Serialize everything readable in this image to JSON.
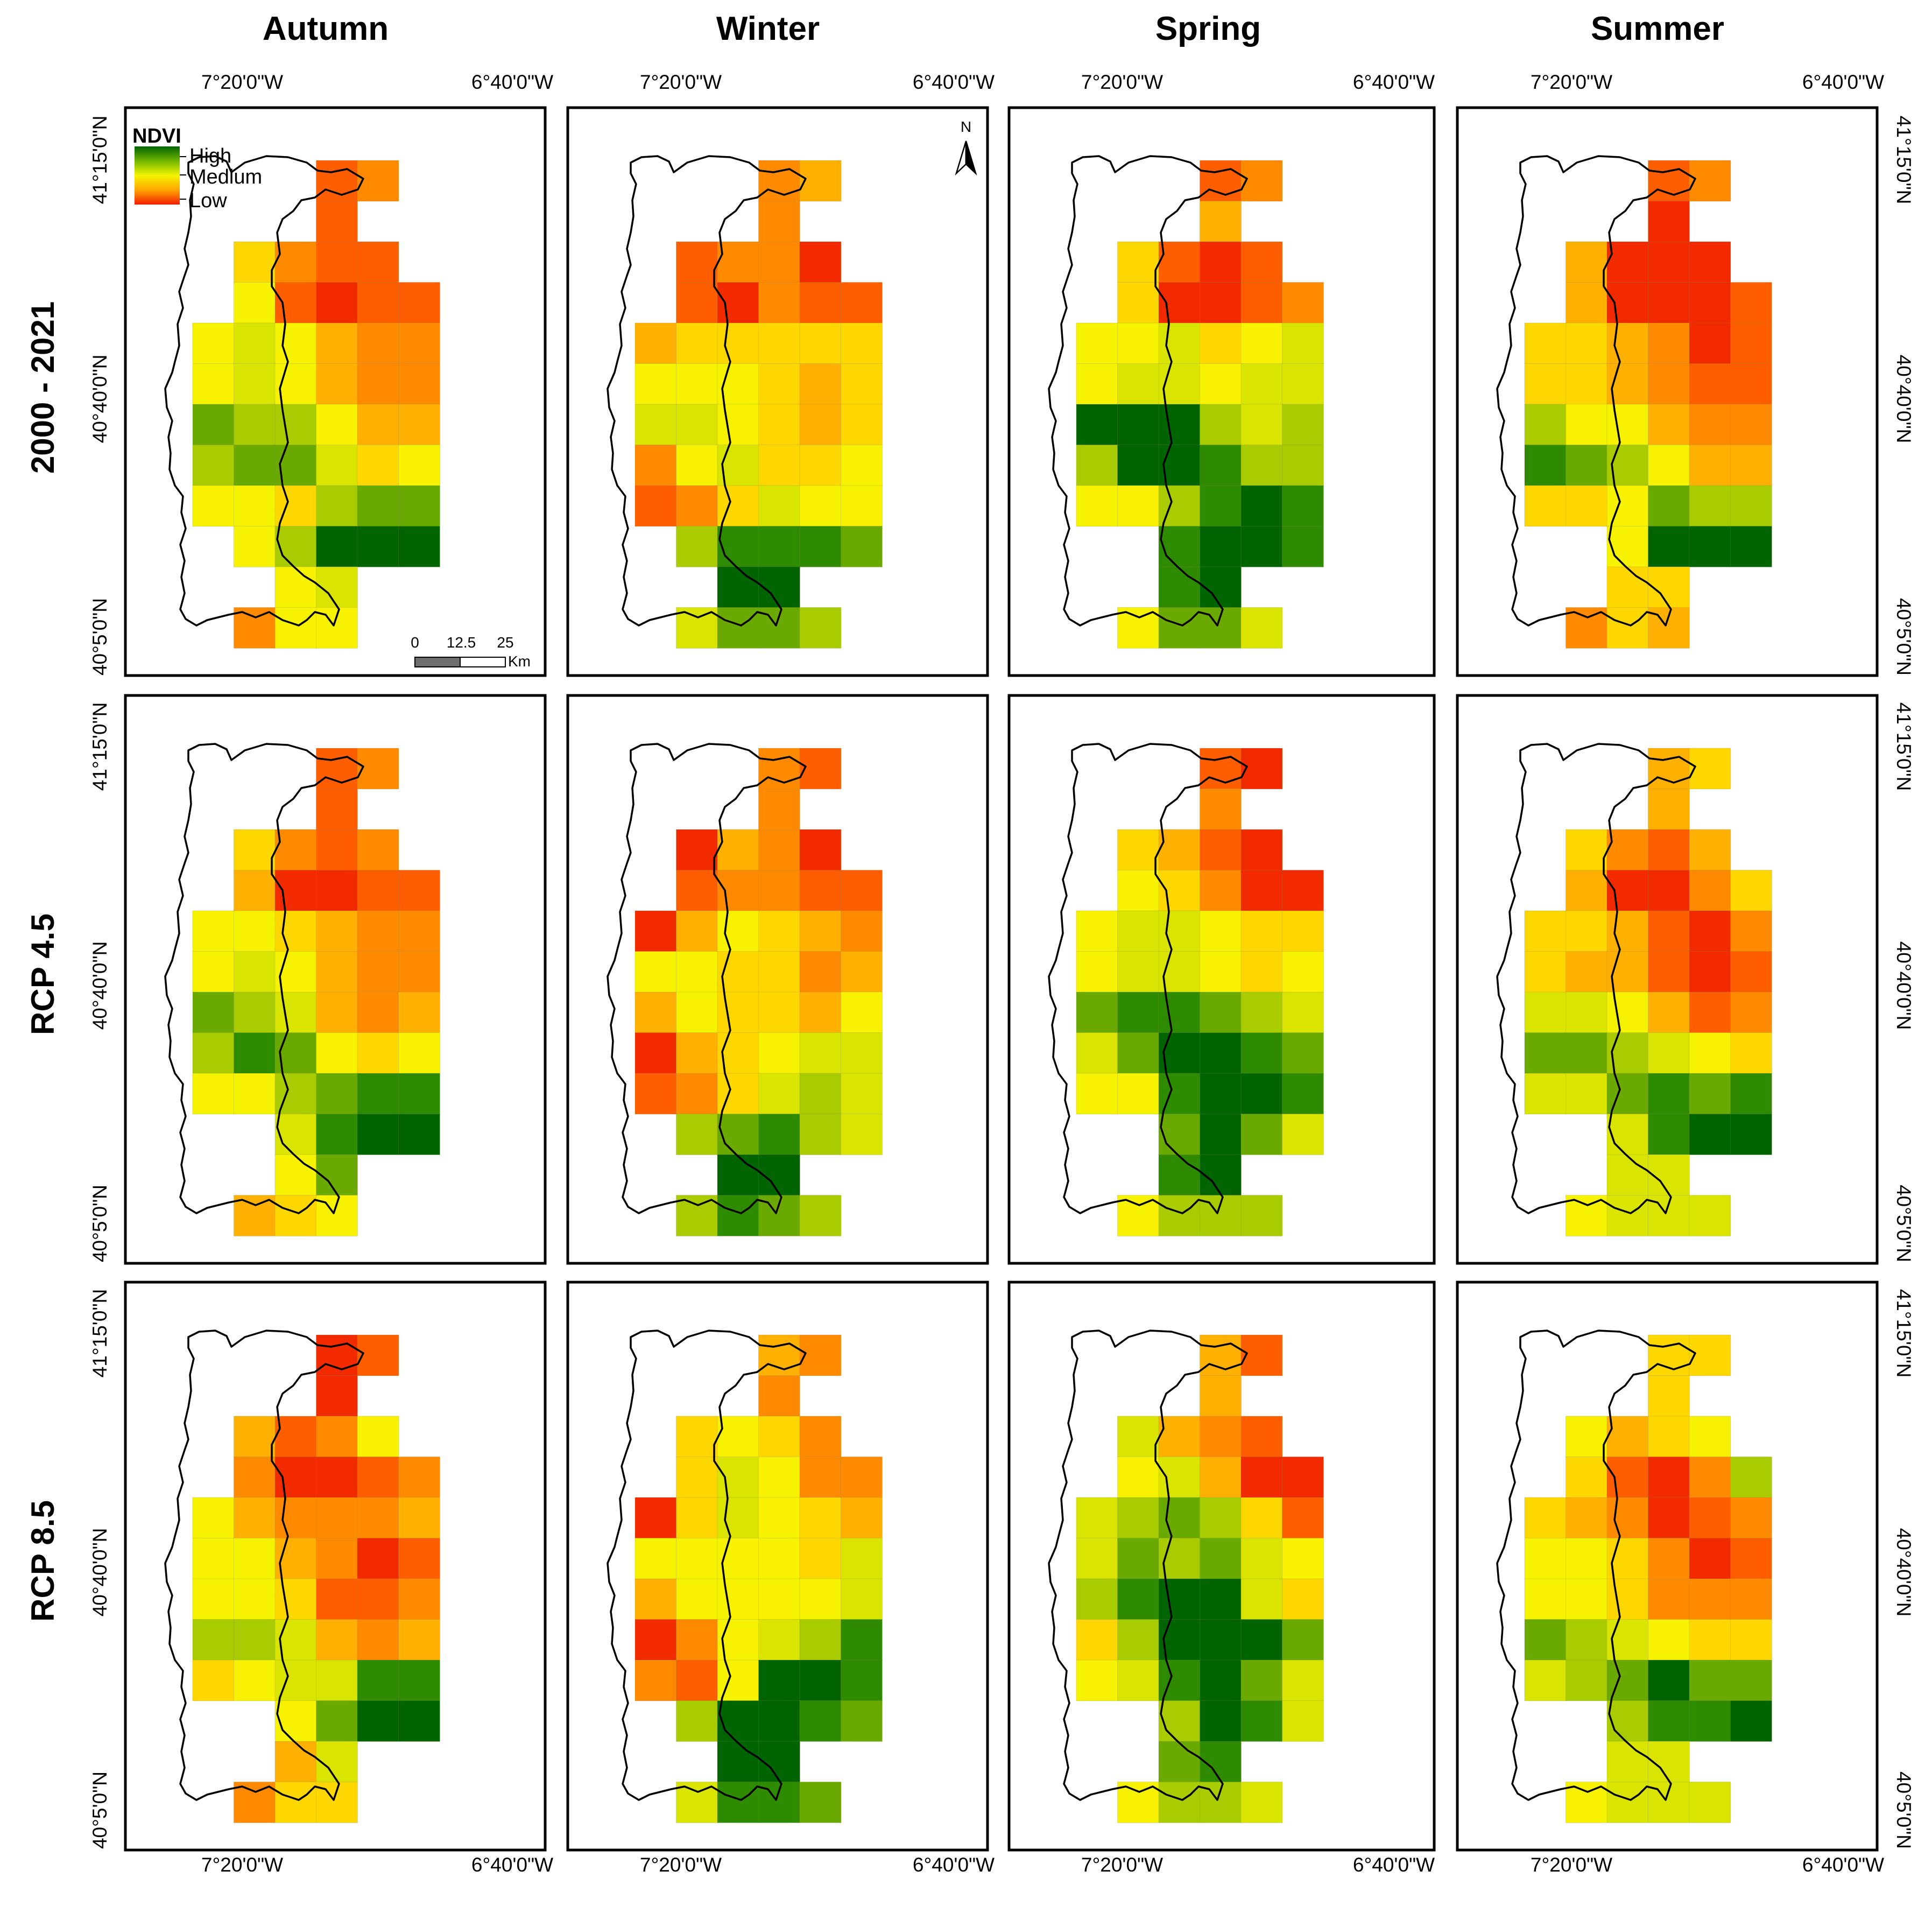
{
  "figure": {
    "seasons": [
      "Autumn",
      "Winter",
      "Spring",
      "Summer"
    ],
    "rows": [
      "2000 - 2021",
      "RCP 4.5",
      "RCP 8.5"
    ],
    "lon_labels": [
      "7°20'0\"W",
      "6°40'0\"W"
    ],
    "lat_labels": [
      "41°15'0\"N",
      "40°40'0\"N",
      "40°5'0\"N"
    ]
  },
  "legend": {
    "title": "NDVI",
    "high": "High",
    "medium": "Medium",
    "low": "Low",
    "colors": [
      "#006400",
      "#2e8b00",
      "#6aaa00",
      "#a9cc00",
      "#d9e500",
      "#f7f300",
      "#ffd700",
      "#ffb000",
      "#ff8a00",
      "#ff5e00",
      "#f22a00"
    ]
  },
  "scalebar": {
    "ticks": [
      "0",
      "12.5",
      "25"
    ],
    "unit": "Km"
  },
  "north_arrow": {
    "label": "N"
  },
  "grid_cols": [
    "C0",
    "C1",
    "C2",
    "C3",
    "C4",
    "C5",
    "C6"
  ],
  "grid_rows": [
    "R0",
    "R1",
    "R2",
    "R3",
    "R4",
    "R5",
    "R6",
    "R7",
    "R8",
    "R9",
    "R10",
    "R11"
  ],
  "ndvi_class_scale": "0 = lowest NDVI (red) ... 10 = highest NDVI (dark green); -1 = no cell",
  "panels": [
    {
      "row": "2000 - 2021",
      "season": "Autumn",
      "grid": [
        [
          -1,
          -1,
          -1,
          1,
          2,
          -1,
          -1
        ],
        [
          -1,
          -1,
          -1,
          1,
          -1,
          -1,
          -1
        ],
        [
          -1,
          4,
          2,
          1,
          1,
          -1,
          -1
        ],
        [
          -1,
          5,
          1,
          0,
          1,
          1,
          -1
        ],
        [
          5,
          6,
          5,
          3,
          2,
          2,
          -1
        ],
        [
          5,
          6,
          5,
          3,
          2,
          2,
          -1
        ],
        [
          8,
          7,
          7,
          5,
          3,
          3,
          -1
        ],
        [
          7,
          8,
          8,
          6,
          4,
          5,
          -1
        ],
        [
          5,
          5,
          4,
          7,
          8,
          8,
          -1
        ],
        [
          -1,
          5,
          7,
          10,
          10,
          10,
          -1
        ],
        [
          -1,
          -1,
          5,
          6,
          -1,
          -1,
          -1
        ],
        [
          -1,
          2,
          5,
          5,
          -1,
          -1,
          -1
        ]
      ]
    },
    {
      "row": "2000 - 2021",
      "season": "Winter",
      "grid": [
        [
          -1,
          -1,
          -1,
          2,
          3,
          -1,
          -1
        ],
        [
          -1,
          -1,
          -1,
          2,
          -1,
          -1,
          -1
        ],
        [
          -1,
          1,
          2,
          2,
          0,
          -1,
          -1
        ],
        [
          -1,
          1,
          0,
          2,
          1,
          1,
          -1
        ],
        [
          3,
          4,
          4,
          4,
          4,
          4,
          -1
        ],
        [
          5,
          5,
          5,
          4,
          3,
          4,
          -1
        ],
        [
          6,
          6,
          5,
          4,
          3,
          4,
          -1
        ],
        [
          2,
          5,
          6,
          4,
          4,
          5,
          -1
        ],
        [
          1,
          2,
          4,
          6,
          5,
          5,
          -1
        ],
        [
          -1,
          7,
          9,
          9,
          9,
          8,
          -1
        ],
        [
          -1,
          -1,
          10,
          10,
          -1,
          -1,
          -1
        ],
        [
          -1,
          6,
          8,
          8,
          7,
          -1,
          -1
        ]
      ]
    },
    {
      "row": "2000 - 2021",
      "season": "Spring",
      "grid": [
        [
          -1,
          -1,
          -1,
          1,
          2,
          -1,
          -1
        ],
        [
          -1,
          -1,
          -1,
          3,
          -1,
          -1,
          -1
        ],
        [
          -1,
          4,
          1,
          0,
          1,
          -1,
          -1
        ],
        [
          -1,
          4,
          0,
          0,
          1,
          2,
          -1
        ],
        [
          5,
          5,
          6,
          4,
          5,
          6,
          -1
        ],
        [
          5,
          6,
          6,
          5,
          6,
          6,
          -1
        ],
        [
          10,
          10,
          10,
          7,
          6,
          7,
          -1
        ],
        [
          7,
          10,
          10,
          9,
          7,
          7,
          -1
        ],
        [
          5,
          5,
          7,
          9,
          10,
          9,
          -1
        ],
        [
          -1,
          -1,
          9,
          10,
          10,
          9,
          -1
        ],
        [
          -1,
          -1,
          9,
          10,
          -1,
          -1,
          -1
        ],
        [
          -1,
          5,
          8,
          8,
          6,
          -1,
          -1
        ]
      ]
    },
    {
      "row": "2000 - 2021",
      "season": "Summer",
      "grid": [
        [
          -1,
          -1,
          -1,
          1,
          2,
          -1,
          -1
        ],
        [
          -1,
          -1,
          -1,
          0,
          -1,
          -1,
          -1
        ],
        [
          -1,
          3,
          0,
          0,
          0,
          -1,
          -1
        ],
        [
          -1,
          3,
          0,
          0,
          0,
          1,
          -1
        ],
        [
          4,
          4,
          3,
          2,
          0,
          1,
          -1
        ],
        [
          4,
          4,
          3,
          2,
          1,
          1,
          -1
        ],
        [
          7,
          5,
          5,
          3,
          2,
          2,
          -1
        ],
        [
          9,
          8,
          7,
          5,
          3,
          3,
          -1
        ],
        [
          4,
          4,
          5,
          8,
          7,
          7,
          -1
        ],
        [
          -1,
          -1,
          5,
          10,
          10,
          10,
          -1
        ],
        [
          -1,
          -1,
          4,
          4,
          -1,
          -1,
          -1
        ],
        [
          -1,
          2,
          4,
          3,
          -1,
          -1,
          -1
        ]
      ]
    },
    {
      "row": "RCP 4.5",
      "season": "Autumn",
      "grid": [
        [
          -1,
          -1,
          -1,
          1,
          2,
          -1,
          -1
        ],
        [
          -1,
          -1,
          -1,
          1,
          -1,
          -1,
          -1
        ],
        [
          -1,
          4,
          2,
          1,
          2,
          -1,
          -1
        ],
        [
          -1,
          3,
          0,
          0,
          1,
          1,
          -1
        ],
        [
          5,
          5,
          4,
          3,
          2,
          2,
          -1
        ],
        [
          5,
          6,
          5,
          3,
          2,
          2,
          -1
        ],
        [
          8,
          7,
          6,
          3,
          2,
          3,
          -1
        ],
        [
          7,
          9,
          8,
          5,
          4,
          5,
          -1
        ],
        [
          5,
          5,
          7,
          8,
          9,
          9,
          -1
        ],
        [
          -1,
          -1,
          6,
          9,
          10,
          10,
          -1
        ],
        [
          -1,
          -1,
          5,
          8,
          -1,
          -1,
          -1
        ],
        [
          -1,
          3,
          4,
          5,
          -1,
          -1,
          -1
        ]
      ]
    },
    {
      "row": "RCP 4.5",
      "season": "Winter",
      "grid": [
        [
          -1,
          -1,
          -1,
          2,
          1,
          -1,
          -1
        ],
        [
          -1,
          -1,
          -1,
          2,
          -1,
          -1,
          -1
        ],
        [
          -1,
          0,
          3,
          2,
          0,
          -1,
          -1
        ],
        [
          -1,
          1,
          2,
          2,
          1,
          1,
          -1
        ],
        [
          0,
          3,
          5,
          4,
          3,
          2,
          -1
        ],
        [
          5,
          5,
          4,
          4,
          2,
          3,
          -1
        ],
        [
          3,
          5,
          4,
          4,
          3,
          5,
          -1
        ],
        [
          0,
          3,
          4,
          5,
          6,
          6,
          -1
        ],
        [
          1,
          2,
          4,
          6,
          7,
          6,
          -1
        ],
        [
          -1,
          7,
          8,
          9,
          7,
          6,
          -1
        ],
        [
          -1,
          -1,
          10,
          10,
          -1,
          -1,
          -1
        ],
        [
          -1,
          7,
          9,
          8,
          7,
          -1,
          -1
        ]
      ]
    },
    {
      "row": "RCP 4.5",
      "season": "Spring",
      "grid": [
        [
          -1,
          -1,
          -1,
          1,
          0,
          -1,
          -1
        ],
        [
          -1,
          -1,
          -1,
          2,
          -1,
          -1,
          -1
        ],
        [
          -1,
          4,
          3,
          1,
          0,
          -1,
          -1
        ],
        [
          -1,
          5,
          4,
          2,
          0,
          0,
          -1
        ],
        [
          5,
          6,
          6,
          5,
          4,
          4,
          -1
        ],
        [
          5,
          6,
          6,
          5,
          4,
          5,
          -1
        ],
        [
          8,
          9,
          9,
          8,
          7,
          6,
          -1
        ],
        [
          6,
          8,
          10,
          10,
          9,
          8,
          -1
        ],
        [
          5,
          5,
          9,
          10,
          10,
          9,
          -1
        ],
        [
          -1,
          -1,
          8,
          10,
          8,
          6,
          -1
        ],
        [
          -1,
          -1,
          9,
          10,
          -1,
          -1,
          -1
        ],
        [
          -1,
          5,
          7,
          7,
          7,
          -1,
          -1
        ]
      ]
    },
    {
      "row": "RCP 4.5",
      "season": "Summer",
      "grid": [
        [
          -1,
          -1,
          -1,
          3,
          4,
          -1,
          -1
        ],
        [
          -1,
          -1,
          -1,
          3,
          -1,
          -1,
          -1
        ],
        [
          -1,
          4,
          2,
          1,
          3,
          -1,
          -1
        ],
        [
          -1,
          3,
          0,
          0,
          2,
          4,
          -1
        ],
        [
          4,
          4,
          3,
          1,
          0,
          2,
          -1
        ],
        [
          4,
          3,
          3,
          1,
          0,
          1,
          -1
        ],
        [
          6,
          6,
          5,
          3,
          1,
          2,
          -1
        ],
        [
          8,
          8,
          7,
          6,
          5,
          4,
          -1
        ],
        [
          6,
          6,
          8,
          9,
          8,
          9,
          -1
        ],
        [
          -1,
          -1,
          6,
          9,
          10,
          10,
          -1
        ],
        [
          -1,
          -1,
          6,
          6,
          -1,
          -1,
          -1
        ],
        [
          -1,
          5,
          6,
          6,
          6,
          -1,
          -1
        ]
      ]
    },
    {
      "row": "RCP 8.5",
      "season": "Autumn",
      "grid": [
        [
          -1,
          -1,
          -1,
          0,
          1,
          -1,
          -1
        ],
        [
          -1,
          -1,
          -1,
          0,
          -1,
          -1,
          -1
        ],
        [
          -1,
          3,
          1,
          2,
          5,
          -1,
          -1
        ],
        [
          -1,
          2,
          0,
          0,
          1,
          2,
          -1
        ],
        [
          5,
          3,
          2,
          2,
          2,
          3,
          -1
        ],
        [
          5,
          5,
          3,
          2,
          0,
          1,
          -1
        ],
        [
          5,
          5,
          4,
          1,
          1,
          2,
          -1
        ],
        [
          7,
          7,
          6,
          3,
          2,
          3,
          -1
        ],
        [
          4,
          5,
          6,
          6,
          9,
          9,
          -1
        ],
        [
          -1,
          -1,
          5,
          8,
          10,
          10,
          -1
        ],
        [
          -1,
          -1,
          3,
          6,
          -1,
          -1,
          -1
        ],
        [
          -1,
          2,
          4,
          4,
          -1,
          -1,
          -1
        ]
      ]
    },
    {
      "row": "RCP 8.5",
      "season": "Winter",
      "grid": [
        [
          -1,
          -1,
          -1,
          3,
          2,
          -1,
          -1
        ],
        [
          -1,
          -1,
          -1,
          2,
          -1,
          -1,
          -1
        ],
        [
          -1,
          4,
          5,
          4,
          2,
          -1,
          -1
        ],
        [
          -1,
          4,
          6,
          5,
          2,
          2,
          -1
        ],
        [
          0,
          4,
          6,
          5,
          4,
          3,
          -1
        ],
        [
          5,
          5,
          5,
          5,
          4,
          6,
          -1
        ],
        [
          3,
          5,
          5,
          5,
          5,
          6,
          -1
        ],
        [
          0,
          2,
          5,
          6,
          7,
          9,
          -1
        ],
        [
          2,
          1,
          5,
          10,
          10,
          9,
          -1
        ],
        [
          -1,
          7,
          10,
          10,
          9,
          8,
          -1
        ],
        [
          -1,
          -1,
          10,
          10,
          -1,
          -1,
          -1
        ],
        [
          -1,
          6,
          9,
          9,
          8,
          -1,
          -1
        ]
      ]
    },
    {
      "row": "RCP 8.5",
      "season": "Spring",
      "grid": [
        [
          -1,
          -1,
          -1,
          3,
          1,
          -1,
          -1
        ],
        [
          -1,
          -1,
          -1,
          3,
          -1,
          -1,
          -1
        ],
        [
          -1,
          6,
          3,
          2,
          1,
          -1,
          -1
        ],
        [
          -1,
          5,
          6,
          3,
          0,
          0,
          -1
        ],
        [
          6,
          7,
          8,
          7,
          4,
          1,
          -1
        ],
        [
          6,
          8,
          7,
          8,
          6,
          5,
          -1
        ],
        [
          7,
          9,
          10,
          10,
          6,
          4,
          -1
        ],
        [
          4,
          7,
          10,
          10,
          10,
          8,
          -1
        ],
        [
          5,
          6,
          9,
          10,
          8,
          6,
          -1
        ],
        [
          -1,
          -1,
          7,
          10,
          9,
          6,
          -1
        ],
        [
          -1,
          -1,
          8,
          9,
          -1,
          -1,
          -1
        ],
        [
          -1,
          5,
          7,
          7,
          6,
          -1,
          -1
        ]
      ]
    },
    {
      "row": "RCP 8.5",
      "season": "Summer",
      "grid": [
        [
          -1,
          -1,
          -1,
          4,
          4,
          -1,
          -1
        ],
        [
          -1,
          -1,
          -1,
          4,
          -1,
          -1,
          -1
        ],
        [
          -1,
          5,
          3,
          4,
          5,
          -1,
          -1
        ],
        [
          -1,
          4,
          1,
          0,
          2,
          7,
          -1
        ],
        [
          4,
          3,
          2,
          0,
          1,
          2,
          -1
        ],
        [
          5,
          5,
          4,
          2,
          0,
          1,
          -1
        ],
        [
          5,
          5,
          4,
          2,
          2,
          2,
          -1
        ],
        [
          8,
          7,
          6,
          5,
          4,
          4,
          -1
        ],
        [
          6,
          7,
          8,
          10,
          8,
          8,
          -1
        ],
        [
          -1,
          -1,
          7,
          9,
          9,
          10,
          -1
        ],
        [
          -1,
          -1,
          6,
          6,
          -1,
          -1,
          -1
        ],
        [
          -1,
          5,
          6,
          6,
          6,
          -1,
          -1
        ]
      ]
    }
  ]
}
